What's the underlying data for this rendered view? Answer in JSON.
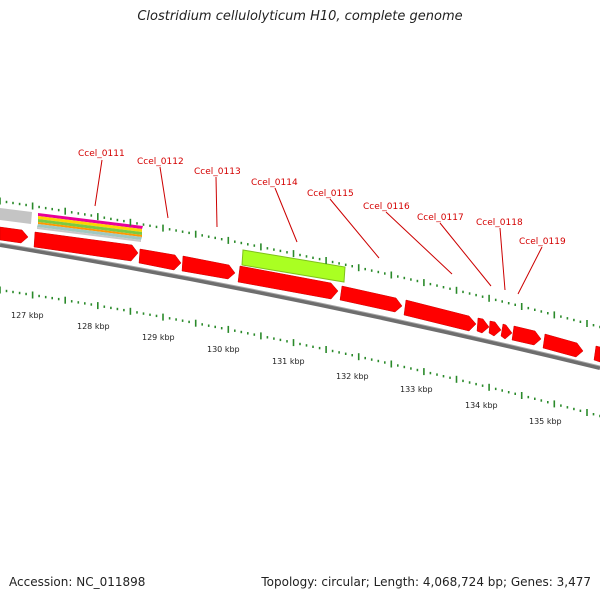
{
  "title": "Clostridium cellulolyticum H10, complete genome",
  "footer": {
    "accession": "Accession: NC_011898",
    "summary": "Topology: circular; Length: 4,068,724 bp; Genes: 3,477"
  },
  "colors": {
    "gene": "#ff0000",
    "highlight": "#aaff22",
    "tick": "#2a8a2a",
    "backbone": "#777777",
    "label": "#d40000"
  },
  "loci": [
    "Ccel_0111",
    "Ccel_0112",
    "Ccel_0113",
    "Ccel_0114",
    "Ccel_0115",
    "Ccel_0116",
    "Ccel_0117",
    "Ccel_0118",
    "Ccel_0119"
  ],
  "scale": {
    "unit": "kbp",
    "labels": [
      "127 kbp",
      "128 kbp",
      "129 kbp",
      "130 kbp",
      "131 kbp",
      "132 kbp",
      "133 kbp",
      "134 kbp",
      "135 kbp"
    ]
  }
}
